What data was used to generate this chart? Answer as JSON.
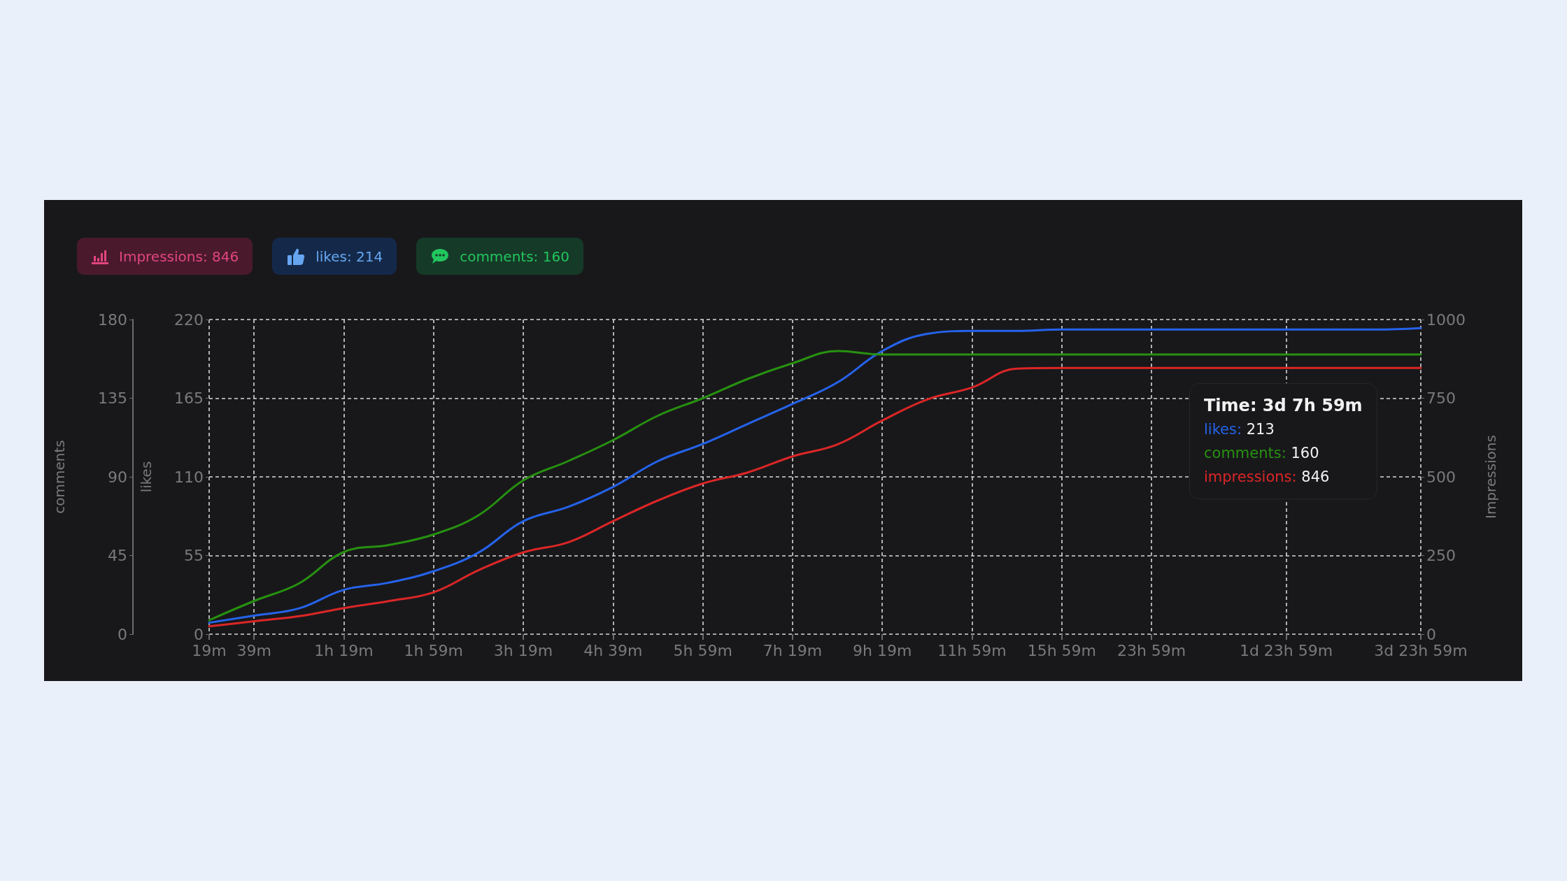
{
  "chart_data": {
    "type": "line",
    "categories": [
      "19m",
      "39m",
      null,
      "1h 19m",
      null,
      "1h 59m",
      null,
      "3h 19m",
      null,
      "4h 39m",
      null,
      "5h 59m",
      null,
      "7h 19m",
      null,
      "9h 19m",
      null,
      "11h 59m",
      null,
      "15h 59m",
      null,
      "23h 59m",
      null,
      null,
      "1d 23h 59m",
      null,
      null,
      "3d 23h 59m"
    ],
    "series": [
      {
        "color": "#2563eb",
        "values": [
          8,
          13,
          18,
          31,
          36,
          44,
          57,
          79,
          89,
          103,
          121,
          133,
          147,
          161,
          176,
          198,
          210,
          212,
          212,
          213,
          213,
          213,
          213,
          213,
          213,
          213,
          213,
          214
        ]
      },
      {
        "color": "#279110",
        "axis": "y3",
        "values": [
          8,
          19,
          29,
          47,
          51,
          57,
          68,
          88,
          99,
          111,
          125,
          135,
          146,
          155,
          162,
          160,
          160,
          160,
          160,
          160,
          160,
          160,
          160,
          160,
          160,
          160,
          160,
          160
        ]
      },
      {
        "color": "#dc2626",
        "axis": "y2",
        "values": [
          25,
          41,
          57,
          83,
          105,
          133,
          203,
          260,
          292,
          359,
          425,
          479,
          514,
          565,
          603,
          679,
          746,
          784,
          844,
          846,
          846,
          846,
          846,
          846,
          846,
          846,
          846,
          846
        ]
      }
    ],
    "ylabel": "likes",
    "ylim": [
      0,
      220
    ],
    "yticks": [
      0,
      55,
      110,
      165,
      220
    ],
    "y2label": "Impressions",
    "y2lim": [
      0,
      1000
    ],
    "y2ticks": [
      0,
      250,
      500,
      750,
      1000
    ],
    "y3label": "comments",
    "y3lim": [
      0,
      180
    ],
    "y3ticks": [
      0,
      45,
      90,
      135,
      180
    ],
    "grid": true,
    "marker": "none",
    "line_style": "solid",
    "annotations": [
      "Impressions: 846",
      "likes: 214",
      "comments: 160",
      "Time: 3d 7h 59m",
      "likes: 213",
      "comments: 160",
      "impressions: 846"
    ]
  }
}
